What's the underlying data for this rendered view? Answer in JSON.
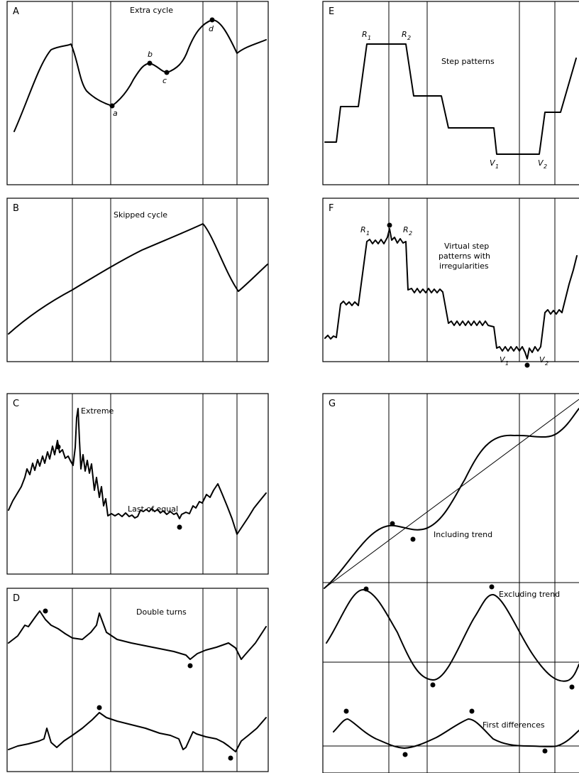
{
  "figure": {
    "panels": [
      {
        "letter": "A",
        "title": "Extra cycle",
        "point_labels": [
          "a",
          "b",
          "c",
          "d"
        ]
      },
      {
        "letter": "B",
        "title": "Skipped cycle"
      },
      {
        "letter": "C",
        "title": "",
        "annotations": [
          "Extreme",
          "Last of equal"
        ]
      },
      {
        "letter": "D",
        "title": "Double turns"
      },
      {
        "letter": "E",
        "title": "Step patterns",
        "point_labels": [
          "R",
          "1",
          "R",
          "2",
          "V",
          "1",
          "V",
          "2"
        ]
      },
      {
        "letter": "F",
        "title_lines": [
          "Virtual step",
          "patterns with",
          "irregularities"
        ],
        "point_labels": [
          "R",
          "1",
          "R",
          "2",
          "V",
          "1",
          "V",
          "2"
        ]
      },
      {
        "letter": "G",
        "annotations": [
          "Including trend",
          "Excluding trend",
          "First differences"
        ]
      }
    ]
  },
  "chart_data": [
    {
      "type": "line",
      "panel": "A",
      "title": "Extra cycle",
      "x": [
        0,
        1,
        2,
        3,
        4,
        5,
        6,
        7,
        8,
        9,
        10,
        11,
        12,
        13,
        14,
        15,
        16,
        17,
        18,
        19,
        20
      ],
      "values": [
        2,
        6,
        8,
        8.5,
        8.8,
        5.5,
        4,
        3.3,
        4.5,
        6,
        7.2,
        6.4,
        7.5,
        8.8,
        10,
        9.5,
        7.5,
        8,
        8.4,
        8.8,
        9.2
      ],
      "turning_points": [
        "a",
        "b",
        "c",
        "d"
      ],
      "grid": false
    },
    {
      "type": "line",
      "panel": "B",
      "title": "Skipped cycle",
      "x": [
        0,
        1,
        2,
        3,
        4,
        5,
        6,
        7,
        8,
        9,
        10
      ],
      "values": [
        1,
        3,
        4.5,
        5.8,
        7,
        8,
        8.8,
        9.6,
        5.5,
        3.5,
        5
      ],
      "grid": false
    },
    {
      "type": "line",
      "panel": "C",
      "title": "",
      "annotations": [
        "Extreme",
        "Last of equal"
      ],
      "grid": false
    },
    {
      "type": "line",
      "panel": "D",
      "title": "Double turns",
      "series": [
        {
          "values": [
            6,
            8,
            9.5,
            8.5,
            9.8,
            8,
            7,
            6.3,
            5.5,
            6,
            6.5,
            5.5,
            8
          ]
        },
        {
          "values": [
            3,
            3.5,
            5,
            3.5,
            4,
            5,
            4,
            3.5,
            3,
            3.8,
            3.2,
            2.5,
            4
          ]
        }
      ],
      "grid": false
    },
    {
      "type": "line",
      "panel": "E",
      "title": "Step patterns",
      "x": [
        0,
        1,
        2,
        3,
        4,
        5,
        6,
        7,
        8,
        9,
        10
      ],
      "values": [
        2,
        5,
        9,
        9,
        6,
        5,
        4,
        1,
        1,
        4,
        9
      ],
      "turning_points": [
        "R1",
        "R2",
        "V1",
        "V2"
      ],
      "grid": false
    },
    {
      "type": "line",
      "panel": "F",
      "title": "Virtual step patterns with irregularities",
      "turning_points": [
        "R1",
        "R2",
        "V1",
        "V2"
      ],
      "grid": false
    },
    {
      "type": "line",
      "panel": "G",
      "series": [
        {
          "name": "Including trend",
          "values": [
            1,
            3,
            4,
            4.2,
            4,
            6,
            8,
            9.5,
            9.6,
            9.6,
            10.5
          ]
        },
        {
          "name": "Excluding trend",
          "values": [
            5,
            8.5,
            7,
            4,
            3,
            5,
            8.5,
            7,
            4,
            3.5,
            5
          ]
        },
        {
          "name": "First differences",
          "values": [
            3,
            4,
            2.8,
            2,
            1.5,
            2.2,
            3.8,
            2.6,
            1.6,
            1.5,
            2.4
          ]
        }
      ],
      "grid": false
    }
  ]
}
